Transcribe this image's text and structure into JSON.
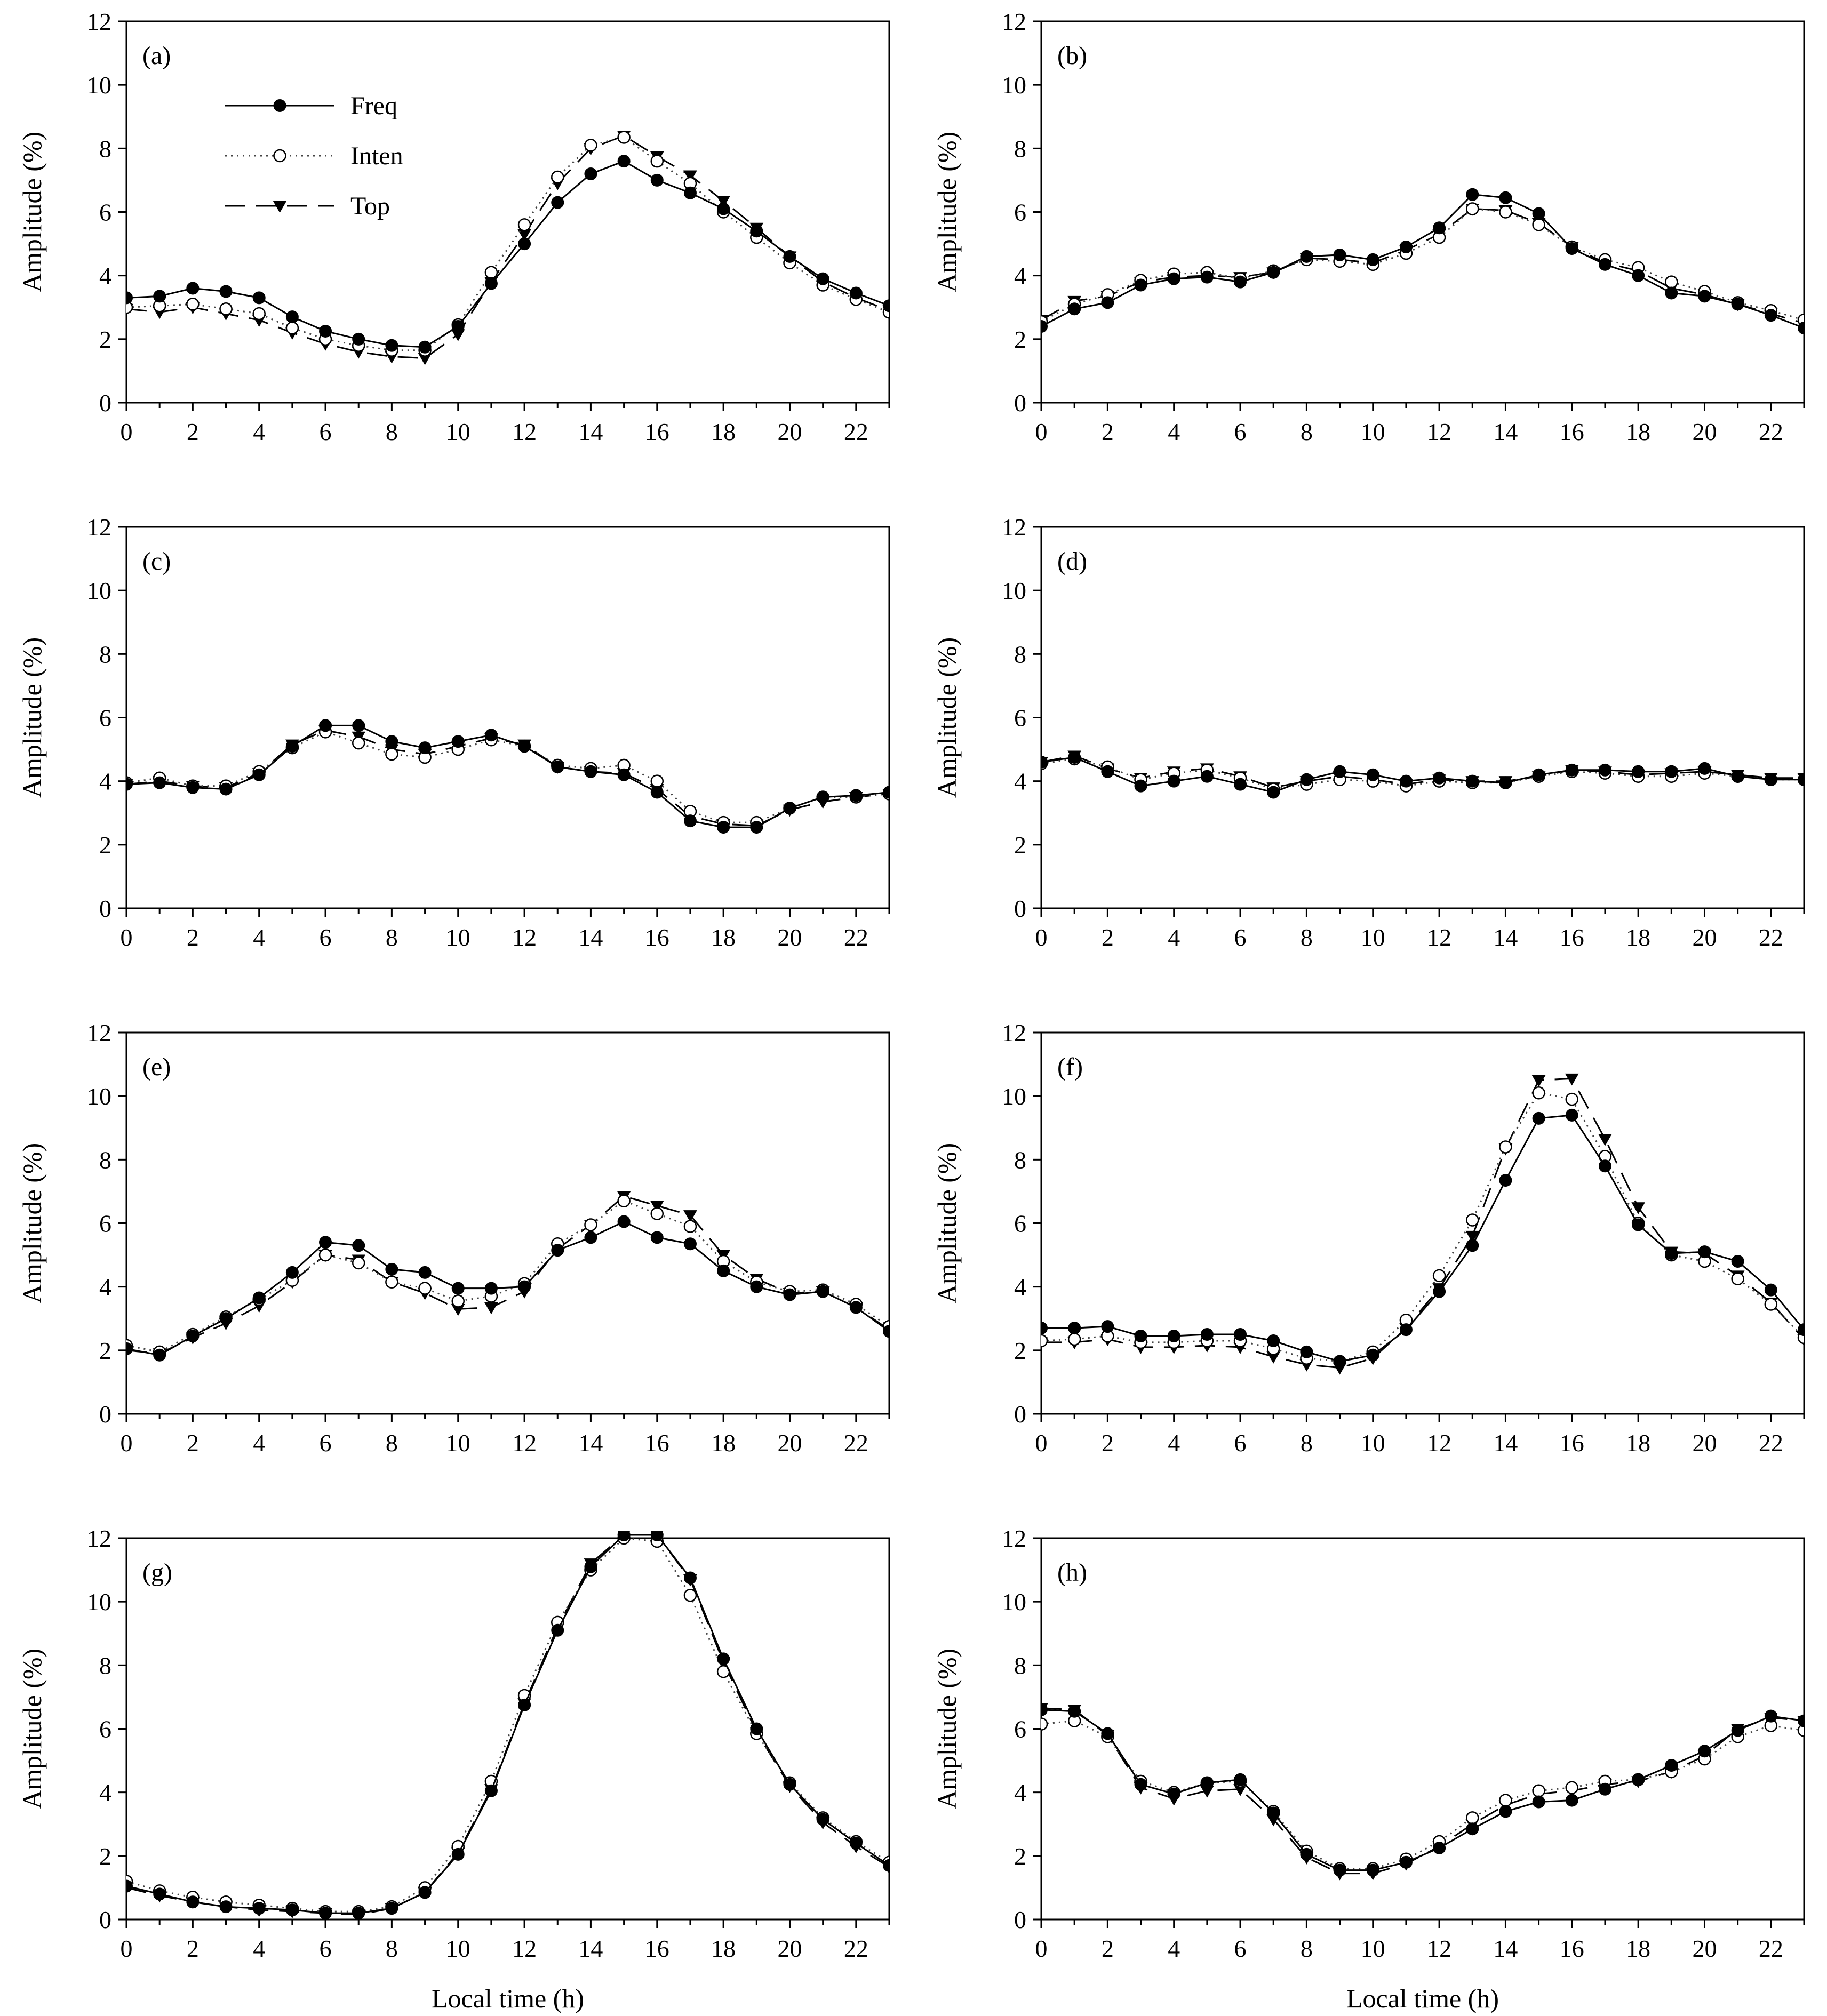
{
  "figure": {
    "x_axis_title": "Local time (h)",
    "y_axis_title": "Amplitude (%)"
  },
  "legend": [
    {
      "series": "Freq",
      "label": "Freq"
    },
    {
      "series": "Inten",
      "label": "Inten"
    },
    {
      "series": "Top",
      "label": "Top"
    }
  ],
  "chart_data": [
    {
      "type": "line",
      "panel": "(a)",
      "xlim": [
        0,
        23
      ],
      "ylim": [
        0,
        12
      ],
      "xticks": [
        0,
        2,
        4,
        6,
        8,
        10,
        12,
        14,
        16,
        18,
        20,
        22
      ],
      "yticks": [
        0,
        2,
        4,
        6,
        8,
        10,
        12
      ],
      "xlabel": "",
      "ylabel": "Amplitude (%)",
      "x": [
        0,
        1,
        2,
        3,
        4,
        5,
        6,
        7,
        8,
        9,
        10,
        11,
        12,
        13,
        14,
        15,
        16,
        17,
        18,
        19,
        20,
        21,
        22,
        23
      ],
      "series": [
        {
          "name": "Freq",
          "values": [
            3.3,
            3.35,
            3.6,
            3.5,
            3.3,
            2.7,
            2.25,
            2.0,
            1.8,
            1.75,
            2.4,
            3.75,
            5.0,
            6.3,
            7.2,
            7.6,
            7.0,
            6.6,
            6.1,
            5.4,
            4.6,
            3.9,
            3.45,
            3.05
          ]
        },
        {
          "name": "Inten",
          "values": [
            3.0,
            3.05,
            3.1,
            2.95,
            2.8,
            2.35,
            2.0,
            1.8,
            1.65,
            1.65,
            2.45,
            4.1,
            5.6,
            7.1,
            8.1,
            8.35,
            7.6,
            6.9,
            6.0,
            5.2,
            4.4,
            3.7,
            3.25,
            2.85
          ]
        },
        {
          "name": "Top",
          "values": [
            2.95,
            2.85,
            3.0,
            2.8,
            2.6,
            2.2,
            1.85,
            1.6,
            1.45,
            1.4,
            2.15,
            3.8,
            5.3,
            6.9,
            8.0,
            8.4,
            7.75,
            7.15,
            6.35,
            5.5,
            4.6,
            3.8,
            3.3,
            2.9
          ]
        }
      ]
    },
    {
      "type": "line",
      "panel": "(b)",
      "xlim": [
        0,
        23
      ],
      "ylim": [
        0,
        12
      ],
      "xticks": [
        0,
        2,
        4,
        6,
        8,
        10,
        12,
        14,
        16,
        18,
        20,
        22
      ],
      "yticks": [
        0,
        2,
        4,
        6,
        8,
        10,
        12
      ],
      "xlabel": "",
      "ylabel": "Amplitude (%)",
      "x": [
        0,
        1,
        2,
        3,
        4,
        5,
        6,
        7,
        8,
        9,
        10,
        11,
        12,
        13,
        14,
        15,
        16,
        17,
        18,
        19,
        20,
        21,
        22,
        23
      ],
      "series": [
        {
          "name": "Freq",
          "values": [
            2.4,
            2.95,
            3.15,
            3.7,
            3.9,
            3.95,
            3.8,
            4.1,
            4.6,
            4.65,
            4.5,
            4.9,
            5.5,
            6.55,
            6.45,
            5.95,
            4.85,
            4.35,
            4.0,
            3.45,
            3.35,
            3.1,
            2.75,
            2.35
          ]
        },
        {
          "name": "Inten",
          "values": [
            2.55,
            3.1,
            3.4,
            3.85,
            4.05,
            4.1,
            3.9,
            4.15,
            4.5,
            4.45,
            4.35,
            4.7,
            5.2,
            6.1,
            6.0,
            5.6,
            4.9,
            4.5,
            4.25,
            3.8,
            3.5,
            3.15,
            2.9,
            2.6
          ]
        },
        {
          "name": "Top",
          "values": [
            2.6,
            3.2,
            3.35,
            3.8,
            3.95,
            4.0,
            3.95,
            4.1,
            4.55,
            4.5,
            4.4,
            4.8,
            5.3,
            6.1,
            6.05,
            5.65,
            4.9,
            4.4,
            4.15,
            3.6,
            3.4,
            3.1,
            2.8,
            2.5
          ]
        }
      ]
    },
    {
      "type": "line",
      "panel": "(c)",
      "xlim": [
        0,
        23
      ],
      "ylim": [
        0,
        12
      ],
      "xticks": [
        0,
        2,
        4,
        6,
        8,
        10,
        12,
        14,
        16,
        18,
        20,
        22
      ],
      "yticks": [
        0,
        2,
        4,
        6,
        8,
        10,
        12
      ],
      "xlabel": "",
      "ylabel": "Amplitude (%)",
      "x": [
        0,
        1,
        2,
        3,
        4,
        5,
        6,
        7,
        8,
        9,
        10,
        11,
        12,
        13,
        14,
        15,
        16,
        17,
        18,
        19,
        20,
        21,
        22,
        23
      ],
      "series": [
        {
          "name": "Freq",
          "values": [
            3.9,
            3.95,
            3.8,
            3.75,
            4.2,
            5.1,
            5.75,
            5.75,
            5.25,
            5.05,
            5.25,
            5.45,
            5.1,
            4.45,
            4.3,
            4.2,
            3.65,
            2.75,
            2.55,
            2.55,
            3.15,
            3.5,
            3.55,
            3.65
          ]
        },
        {
          "name": "Inten",
          "values": [
            3.95,
            4.1,
            3.85,
            3.85,
            4.3,
            5.05,
            5.55,
            5.2,
            4.85,
            4.75,
            5.0,
            5.3,
            5.1,
            4.5,
            4.4,
            4.5,
            4.0,
            3.05,
            2.7,
            2.7,
            3.15,
            3.5,
            3.5,
            3.6
          ]
        },
        {
          "name": "Top",
          "values": [
            3.9,
            4.0,
            3.85,
            3.8,
            4.25,
            5.15,
            5.6,
            5.4,
            5.0,
            4.85,
            5.1,
            5.35,
            5.15,
            4.45,
            4.3,
            4.25,
            3.75,
            2.9,
            2.65,
            2.6,
            3.1,
            3.35,
            3.5,
            3.6
          ]
        }
      ]
    },
    {
      "type": "line",
      "panel": "(d)",
      "xlim": [
        0,
        23
      ],
      "ylim": [
        0,
        12
      ],
      "xticks": [
        0,
        2,
        4,
        6,
        8,
        10,
        12,
        14,
        16,
        18,
        20,
        22
      ],
      "yticks": [
        0,
        2,
        4,
        6,
        8,
        10,
        12
      ],
      "xlabel": "",
      "ylabel": "Amplitude (%)",
      "x": [
        0,
        1,
        2,
        3,
        4,
        5,
        6,
        7,
        8,
        9,
        10,
        11,
        12,
        13,
        14,
        15,
        16,
        17,
        18,
        19,
        20,
        21,
        22,
        23
      ],
      "series": [
        {
          "name": "Freq",
          "values": [
            4.6,
            4.75,
            4.3,
            3.85,
            4.0,
            4.15,
            3.9,
            3.65,
            4.05,
            4.3,
            4.2,
            4.0,
            4.1,
            4.0,
            3.95,
            4.2,
            4.35,
            4.35,
            4.3,
            4.3,
            4.4,
            4.15,
            4.05,
            4.05
          ]
        },
        {
          "name": "Inten",
          "values": [
            4.55,
            4.7,
            4.45,
            4.05,
            4.25,
            4.35,
            4.1,
            3.75,
            3.9,
            4.05,
            4.0,
            3.85,
            4.0,
            3.95,
            3.95,
            4.15,
            4.3,
            4.25,
            4.15,
            4.15,
            4.25,
            4.15,
            4.05,
            4.05
          ]
        },
        {
          "name": "Top",
          "values": [
            4.6,
            4.8,
            4.4,
            4.1,
            4.3,
            4.4,
            4.15,
            3.8,
            4.0,
            4.15,
            4.05,
            3.9,
            4.05,
            4.0,
            4.0,
            4.15,
            4.35,
            4.3,
            4.2,
            4.25,
            4.3,
            4.2,
            4.1,
            4.1
          ]
        }
      ]
    },
    {
      "type": "line",
      "panel": "(e)",
      "xlim": [
        0,
        23
      ],
      "ylim": [
        0,
        12
      ],
      "xticks": [
        0,
        2,
        4,
        6,
        8,
        10,
        12,
        14,
        16,
        18,
        20,
        22
      ],
      "yticks": [
        0,
        2,
        4,
        6,
        8,
        10,
        12
      ],
      "xlabel": "",
      "ylabel": "Amplitude (%)",
      "x": [
        0,
        1,
        2,
        3,
        4,
        5,
        6,
        7,
        8,
        9,
        10,
        11,
        12,
        13,
        14,
        15,
        16,
        17,
        18,
        19,
        20,
        21,
        22,
        23
      ],
      "series": [
        {
          "name": "Freq",
          "values": [
            2.05,
            1.85,
            2.45,
            3.0,
            3.65,
            4.45,
            5.4,
            5.3,
            4.55,
            4.45,
            3.95,
            3.95,
            4.0,
            5.15,
            5.55,
            6.05,
            5.55,
            5.35,
            4.5,
            4.0,
            3.75,
            3.85,
            3.35,
            2.6
          ]
        },
        {
          "name": "Inten",
          "values": [
            2.15,
            1.95,
            2.5,
            3.05,
            3.6,
            4.2,
            5.0,
            4.75,
            4.15,
            3.95,
            3.55,
            3.7,
            4.1,
            5.35,
            5.95,
            6.7,
            6.3,
            5.9,
            4.8,
            4.15,
            3.85,
            3.9,
            3.45,
            2.75
          ]
        },
        {
          "name": "Top",
          "values": [
            2.0,
            1.9,
            2.4,
            2.85,
            3.4,
            4.15,
            5.0,
            4.85,
            4.15,
            3.8,
            3.3,
            3.35,
            3.85,
            5.2,
            5.95,
            6.85,
            6.55,
            6.25,
            5.0,
            4.25,
            3.8,
            3.85,
            3.35,
            2.65
          ]
        }
      ]
    },
    {
      "type": "line",
      "panel": "(f)",
      "xlim": [
        0,
        23
      ],
      "ylim": [
        0,
        12
      ],
      "xticks": [
        0,
        2,
        4,
        6,
        8,
        10,
        12,
        14,
        16,
        18,
        20,
        22
      ],
      "yticks": [
        0,
        2,
        4,
        6,
        8,
        10,
        12
      ],
      "xlabel": "",
      "ylabel": "Amplitude (%)",
      "x": [
        0,
        1,
        2,
        3,
        4,
        5,
        6,
        7,
        8,
        9,
        10,
        11,
        12,
        13,
        14,
        15,
        16,
        17,
        18,
        19,
        20,
        21,
        22,
        23
      ],
      "series": [
        {
          "name": "Freq",
          "values": [
            2.7,
            2.7,
            2.75,
            2.45,
            2.45,
            2.5,
            2.5,
            2.3,
            1.95,
            1.65,
            1.85,
            2.65,
            3.85,
            5.3,
            7.35,
            9.3,
            9.4,
            7.8,
            5.95,
            5.05,
            5.1,
            4.8,
            3.9,
            2.65
          ]
        },
        {
          "name": "Inten",
          "values": [
            2.3,
            2.35,
            2.45,
            2.25,
            2.25,
            2.3,
            2.3,
            2.05,
            1.75,
            1.65,
            1.95,
            2.95,
            4.35,
            6.1,
            8.4,
            10.1,
            9.9,
            8.1,
            6.0,
            5.0,
            4.8,
            4.25,
            3.45,
            2.4
          ]
        },
        {
          "name": "Top",
          "values": [
            2.25,
            2.25,
            2.35,
            2.1,
            2.1,
            2.15,
            2.1,
            1.8,
            1.55,
            1.45,
            1.75,
            2.7,
            3.95,
            5.6,
            8.35,
            10.5,
            10.55,
            8.65,
            6.5,
            5.1,
            5.05,
            4.35,
            3.5,
            2.35
          ]
        }
      ]
    },
    {
      "type": "line",
      "panel": "(g)",
      "xlim": [
        0,
        23
      ],
      "ylim": [
        0,
        12
      ],
      "xticks": [
        0,
        2,
        4,
        6,
        8,
        10,
        12,
        14,
        16,
        18,
        20,
        22
      ],
      "yticks": [
        0,
        2,
        4,
        6,
        8,
        10,
        12
      ],
      "xlabel": "Local time (h)",
      "ylabel": "Amplitude (%)",
      "x": [
        0,
        1,
        2,
        3,
        4,
        5,
        6,
        7,
        8,
        9,
        10,
        11,
        12,
        13,
        14,
        15,
        16,
        17,
        18,
        19,
        20,
        21,
        22,
        23
      ],
      "series": [
        {
          "name": "Freq",
          "values": [
            1.05,
            0.8,
            0.55,
            0.4,
            0.35,
            0.3,
            0.2,
            0.2,
            0.35,
            0.85,
            2.05,
            4.05,
            6.75,
            9.1,
            11.1,
            12.1,
            12.1,
            10.75,
            8.2,
            6.0,
            4.25,
            3.15,
            2.4,
            1.7
          ]
        },
        {
          "name": "Inten",
          "values": [
            1.2,
            0.9,
            0.7,
            0.55,
            0.45,
            0.35,
            0.25,
            0.25,
            0.4,
            1.0,
            2.3,
            4.35,
            7.05,
            9.35,
            11.0,
            12.0,
            11.9,
            10.2,
            7.8,
            5.85,
            4.3,
            3.2,
            2.45,
            1.8
          ]
        },
        {
          "name": "Top",
          "values": [
            1.0,
            0.75,
            0.55,
            0.4,
            0.3,
            0.25,
            0.2,
            0.15,
            0.35,
            0.85,
            2.1,
            4.1,
            6.8,
            9.2,
            11.2,
            12.1,
            12.1,
            10.7,
            8.1,
            5.9,
            4.2,
            3.05,
            2.3,
            1.65
          ]
        }
      ]
    },
    {
      "type": "line",
      "panel": "(h)",
      "xlim": [
        0,
        23
      ],
      "ylim": [
        0,
        12
      ],
      "xticks": [
        0,
        2,
        4,
        6,
        8,
        10,
        12,
        14,
        16,
        18,
        20,
        22
      ],
      "yticks": [
        0,
        2,
        4,
        6,
        8,
        10,
        12
      ],
      "xlabel": "Local time (h)",
      "ylabel": "Amplitude (%)",
      "x": [
        0,
        1,
        2,
        3,
        4,
        5,
        6,
        7,
        8,
        9,
        10,
        11,
        12,
        13,
        14,
        15,
        16,
        17,
        18,
        19,
        20,
        21,
        22,
        23
      ],
      "series": [
        {
          "name": "Freq",
          "values": [
            6.6,
            6.55,
            5.85,
            4.25,
            3.95,
            4.3,
            4.4,
            3.35,
            2.05,
            1.55,
            1.55,
            1.8,
            2.25,
            2.85,
            3.4,
            3.7,
            3.75,
            4.1,
            4.4,
            4.85,
            5.3,
            5.95,
            6.4,
            6.25
          ]
        },
        {
          "name": "Inten",
          "values": [
            6.15,
            6.25,
            5.75,
            4.35,
            4.0,
            4.3,
            4.35,
            3.4,
            2.15,
            1.6,
            1.6,
            1.9,
            2.45,
            3.2,
            3.75,
            4.05,
            4.15,
            4.35,
            4.4,
            4.65,
            5.05,
            5.75,
            6.1,
            5.95
          ]
        },
        {
          "name": "Top",
          "values": [
            6.65,
            6.6,
            5.8,
            4.15,
            3.8,
            4.05,
            4.1,
            3.15,
            1.95,
            1.45,
            1.45,
            1.75,
            2.3,
            3.0,
            3.6,
            3.95,
            4.05,
            4.25,
            4.35,
            4.65,
            5.15,
            6.0,
            6.35,
            6.25
          ]
        }
      ]
    }
  ]
}
